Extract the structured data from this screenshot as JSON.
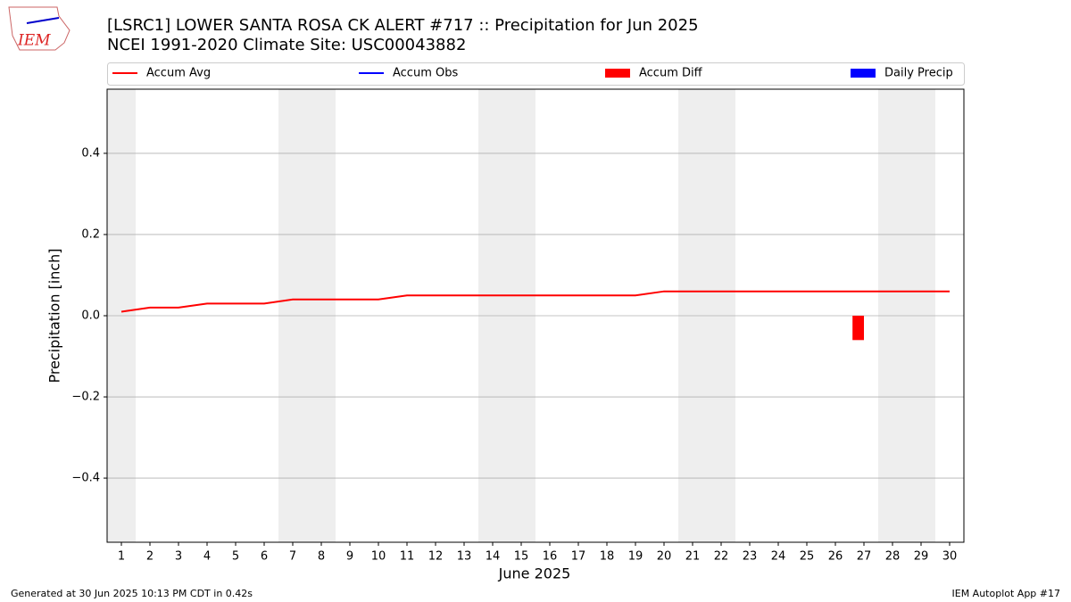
{
  "logo_text": "IEM",
  "footer_left": "Generated at 30 Jun 2025 10:13 PM CDT in 0.42s",
  "footer_right": "IEM Autoplot App #17",
  "chart_data": {
    "type": "line",
    "title": "[LSRC1] LOWER SANTA ROSA CK ALERT #717 :: Precipitation for Jun 2025",
    "subtitle": "NCEI 1991-2020 Climate Site: USC00043882",
    "xlabel": "June 2025",
    "ylabel": "Precipitation [inch]",
    "x": [
      1,
      2,
      3,
      4,
      5,
      6,
      7,
      8,
      9,
      10,
      11,
      12,
      13,
      14,
      15,
      16,
      17,
      18,
      19,
      20,
      21,
      22,
      23,
      24,
      25,
      26,
      27,
      28,
      29,
      30
    ],
    "series": [
      {
        "name": "Accum Avg",
        "color": "#ff0000",
        "kind": "line",
        "values": [
          0.01,
          0.02,
          0.02,
          0.03,
          0.03,
          0.03,
          0.04,
          0.04,
          0.04,
          0.04,
          0.05,
          0.05,
          0.05,
          0.05,
          0.05,
          0.05,
          0.05,
          0.05,
          0.05,
          0.06,
          0.06,
          0.06,
          0.06,
          0.06,
          0.06,
          0.06,
          0.06,
          0.06,
          0.06,
          0.06
        ]
      },
      {
        "name": "Accum Obs",
        "color": "#0000ff",
        "kind": "line"
      },
      {
        "name": "Accum Diff",
        "color": "#ff0000",
        "kind": "bar",
        "values": [
          null,
          null,
          null,
          null,
          null,
          null,
          null,
          null,
          null,
          null,
          null,
          null,
          null,
          null,
          null,
          null,
          null,
          null,
          null,
          null,
          null,
          null,
          null,
          null,
          null,
          null,
          -0.06,
          null,
          null,
          null
        ]
      },
      {
        "name": "Daily Precip",
        "color": "#0000ff",
        "kind": "bar"
      }
    ],
    "xlim": [
      0.5,
      30.5
    ],
    "xticks": [
      1,
      2,
      3,
      4,
      5,
      6,
      7,
      8,
      9,
      10,
      11,
      12,
      13,
      14,
      15,
      16,
      17,
      18,
      19,
      20,
      21,
      22,
      23,
      24,
      25,
      26,
      27,
      28,
      29,
      30
    ],
    "ylim": [
      -0.558,
      0.558
    ],
    "yticks": [
      {
        "value": -0.4,
        "label": "−0.4"
      },
      {
        "value": -0.2,
        "label": "−0.2"
      },
      {
        "value": 0,
        "label": "0.0"
      },
      0.2,
      0.4
    ],
    "grid": true
  }
}
